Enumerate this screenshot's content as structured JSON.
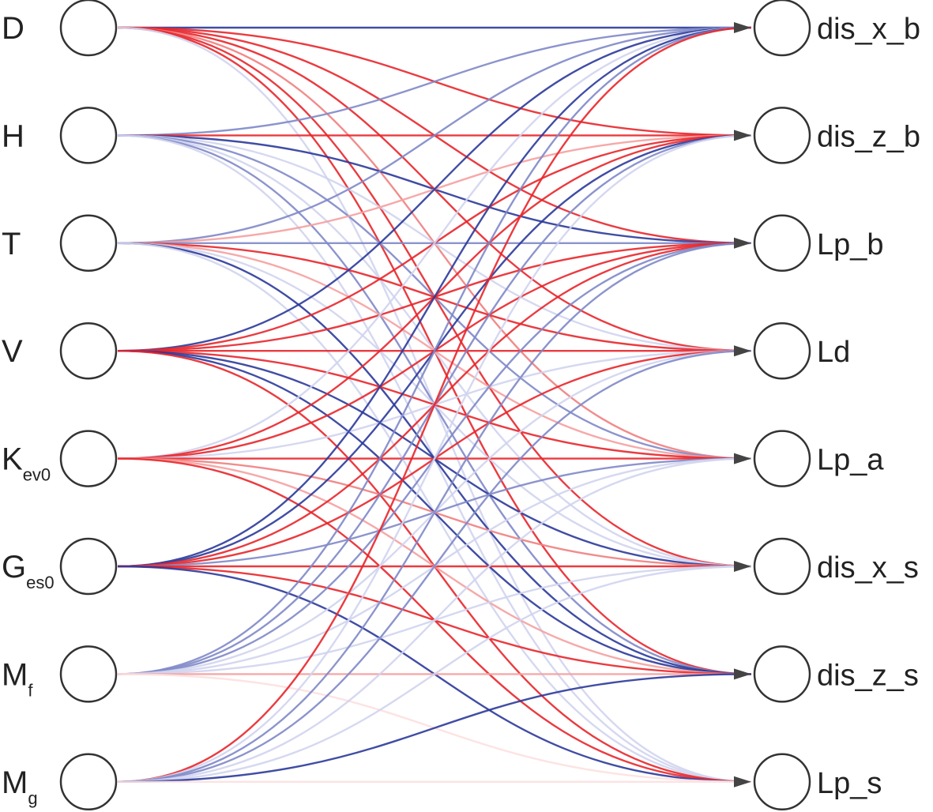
{
  "inputs": [
    {
      "text": "D"
    },
    {
      "text": "H"
    },
    {
      "text": "T"
    },
    {
      "text": "V"
    },
    {
      "text": "K",
      "sub": "ev0"
    },
    {
      "text": "G",
      "sub": "es0"
    },
    {
      "text": "M",
      "sub": "f"
    },
    {
      "text": "M",
      "sub": "g"
    }
  ],
  "outputs": [
    "dis_x_b",
    "dis_z_b",
    "Lp_b",
    "Ld",
    "Lp_a",
    "dis_x_s",
    "dis_z_s",
    "Lp_s"
  ],
  "edge_colors": [
    [
      "#2b3a9a",
      "#e8262b",
      "#e8262b",
      "#e8262b",
      "#f08080",
      "#e8262b",
      "#e8262b",
      "#d0d4ee"
    ],
    [
      "#8088c8",
      "#e8262b",
      "#2b3a9a",
      "#d0d4ee",
      "#8088c8",
      "#d0d4ee",
      "#8088c8",
      "#d0d4ee"
    ],
    [
      "#8088c8",
      "#f5a0a0",
      "#8088c8",
      "#e8262b",
      "#f5a0a0",
      "#d0d4ee",
      "#2b3a9a",
      "#d0d4ee"
    ],
    [
      "#2b3a9a",
      "#e8262b",
      "#e8262b",
      "#e8262b",
      "#e8262b",
      "#2b3a9a",
      "#2b3a9a",
      "#e8262b"
    ],
    [
      "#d0d4ee",
      "#e8262b",
      "#e8262b",
      "#d0d4ee",
      "#e8262b",
      "#f08080",
      "#f5a0a0",
      "#e8262b"
    ],
    [
      "#2b3a9a",
      "#2b3a9a",
      "#e8262b",
      "#e8262b",
      "#8088c8",
      "#e8262b",
      "#e8262b",
      "#2b3a9a"
    ],
    [
      "#8088c8",
      "#8088c8",
      "#8088c8",
      "#d0d4ee",
      "#d0d4ee",
      "#d0d4ee",
      "#f5a0a0",
      "#fde0e0"
    ],
    [
      "#e8262b",
      "#d0d4ee",
      "#8088c8",
      "#8088c8",
      "#d0d4ee",
      "#d0d4ee",
      "#2b3a9a",
      "#fde0e0"
    ]
  ]
}
